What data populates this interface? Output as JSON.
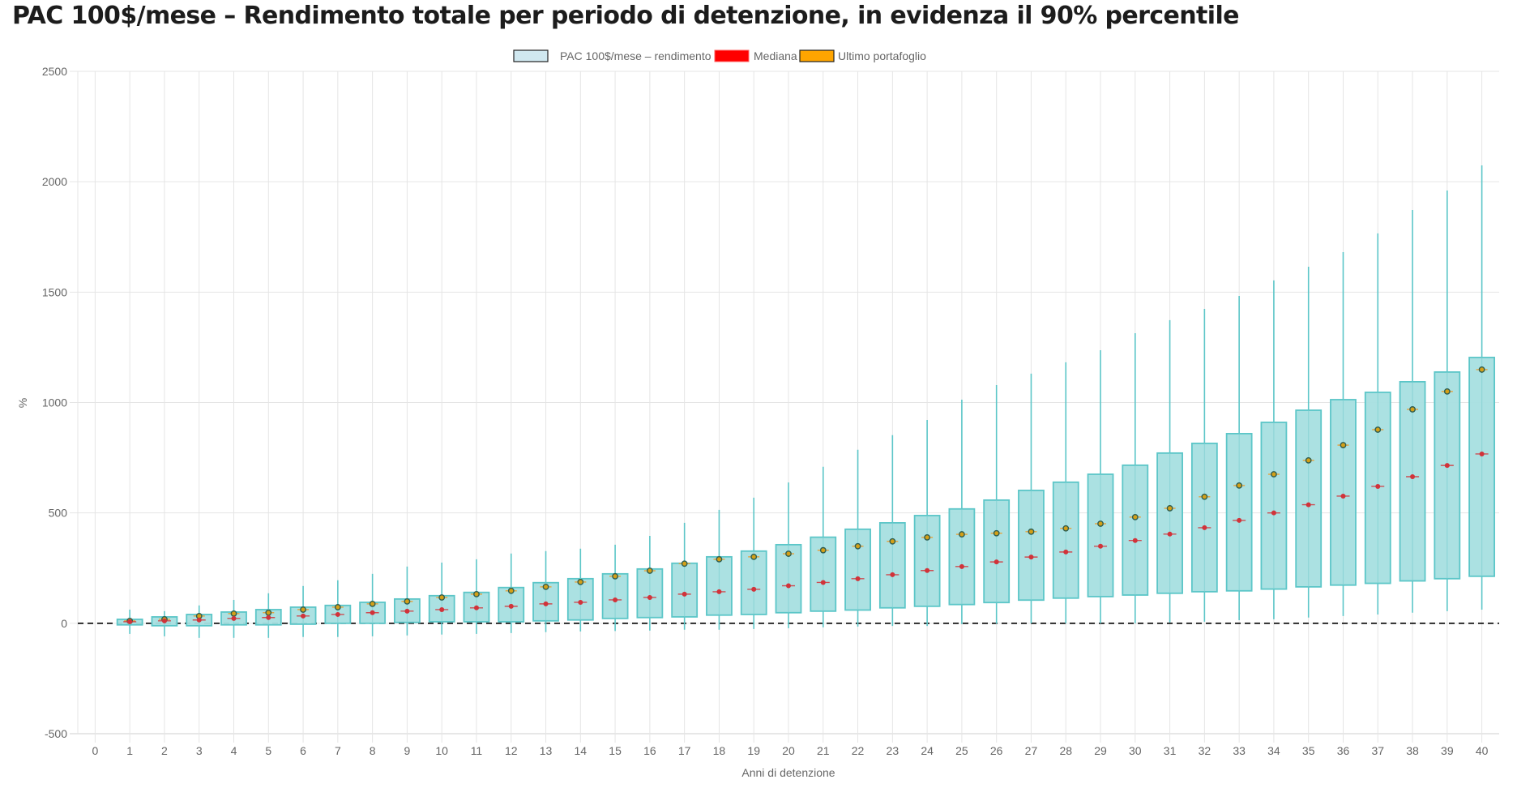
{
  "chart_data": {
    "type": "boxplot",
    "title": "PAC 100$/mese – Rendimento totale per periodo di detenzione, in evidenza il 90% percentile",
    "xlabel": "Anni di detenzione",
    "ylabel": "%",
    "ylim": [
      -500,
      2500
    ],
    "yticks": [
      "2500",
      "2000",
      "1500",
      "1000",
      "500",
      "0",
      "-500"
    ],
    "ytick_values": [
      2500,
      2000,
      1500,
      1000,
      500,
      0,
      -500
    ],
    "grid": true,
    "reference_line": {
      "value": 0,
      "style": "dashed",
      "color": "#000000"
    },
    "legend": {
      "placement": "top-center",
      "items": [
        {
          "label": "PAC 100$/mese – rendimento totale",
          "fill": "#d0e8f0",
          "border": "#222222"
        },
        {
          "label": "Mediana",
          "fill": "#ff0000",
          "border": "#ff6666"
        },
        {
          "label": "Ultimo portafoglio",
          "fill": "#ffa500",
          "border": "#222222"
        }
      ]
    },
    "colors": {
      "box_fill": "#a6dfe0",
      "box_stroke": "#5cc6c8",
      "whisker": "#5cc6c8",
      "median": "#d1333a",
      "last_fill": "#d4a017",
      "last_stroke": "#2f5d50",
      "last_line": "#e6a23c",
      "grid": "#e5e5e5",
      "tick_text": "#666666"
    },
    "categories": [
      "0",
      "1",
      "2",
      "3",
      "4",
      "5",
      "6",
      "7",
      "8",
      "9",
      "10",
      "11",
      "12",
      "13",
      "14",
      "15",
      "16",
      "17",
      "18",
      "19",
      "20",
      "21",
      "22",
      "23",
      "24",
      "25",
      "26",
      "27",
      "28",
      "29",
      "30",
      "31",
      "32",
      "33",
      "34",
      "35",
      "36",
      "37",
      "38",
      "39",
      "40"
    ],
    "series": [
      {
        "name": "whisker_low",
        "values": [
          null,
          -48,
          -59,
          -66,
          -66,
          -66,
          -62,
          -62,
          -59,
          -55,
          -51,
          -48,
          -44,
          -40,
          -37,
          -35,
          -33,
          -29,
          -29,
          -26,
          -22,
          -18,
          -15,
          -12,
          -12,
          -4,
          -2,
          0,
          0,
          0,
          0,
          4,
          7,
          14,
          18,
          26,
          33,
          40,
          48,
          55,
          62
        ]
      },
      {
        "name": "box_low",
        "values": [
          null,
          -7,
          -11,
          -11,
          -7,
          -7,
          -4,
          0,
          0,
          4,
          7,
          7,
          7,
          11,
          15,
          22,
          26,
          29,
          37,
          40,
          48,
          55,
          60,
          70,
          77,
          85,
          94,
          105,
          114,
          121,
          128,
          136,
          143,
          147,
          155,
          165,
          173,
          181,
          192,
          202,
          213
        ]
      },
      {
        "name": "median",
        "values": [
          null,
          7,
          11,
          15,
          22,
          26,
          33,
          40,
          48,
          55,
          62,
          70,
          77,
          88,
          95,
          106,
          117,
          132,
          143,
          154,
          170,
          185,
          202,
          220,
          239,
          257,
          278,
          300,
          323,
          349,
          375,
          404,
          433,
          466,
          500,
          537,
          576,
          620,
          664,
          715,
          767
        ]
      },
      {
        "name": "ultimo_portafoglio",
        "values": [
          null,
          11,
          18,
          33,
          44,
          48,
          62,
          73,
          88,
          99,
          117,
          132,
          147,
          165,
          187,
          213,
          238,
          270,
          290,
          301,
          315,
          331,
          349,
          371,
          389,
          403,
          408,
          415,
          430,
          451,
          481,
          521,
          573,
          624,
          675,
          738,
          807,
          877,
          969,
          1050,
          1149
        ]
      },
      {
        "name": "box_high",
        "values": [
          null,
          18,
          29,
          40,
          51,
          62,
          73,
          81,
          95,
          110,
          125,
          140,
          162,
          184,
          202,
          224,
          246,
          272,
          301,
          327,
          356,
          390,
          426,
          455,
          488,
          518,
          558,
          602,
          639,
          675,
          716,
          771,
          815,
          859,
          910,
          965,
          1013,
          1046,
          1094,
          1138,
          1204
        ]
      },
      {
        "name": "whisker_high",
        "values": [
          null,
          62,
          55,
          81,
          106,
          136,
          169,
          195,
          224,
          257,
          275,
          290,
          316,
          327,
          338,
          356,
          396,
          455,
          514,
          569,
          638,
          709,
          786,
          852,
          921,
          1013,
          1079,
          1131,
          1182,
          1237,
          1314,
          1373,
          1424,
          1483,
          1553,
          1615,
          1681,
          1766,
          1872,
          1960,
          2074
        ]
      }
    ]
  }
}
